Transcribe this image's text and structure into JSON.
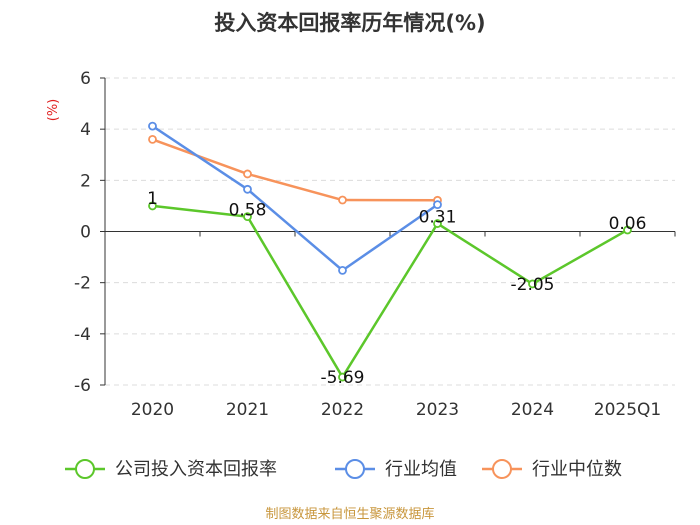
{
  "chart_data": {
    "type": "line",
    "title": "投入资本回报率历年情况(%)",
    "ylabel": "(%)",
    "xlabel": "",
    "categories": [
      "2020",
      "2021",
      "2022",
      "2023",
      "2024",
      "2025Q1"
    ],
    "ylim": [
      -6,
      6
    ],
    "yticks": [
      6,
      4,
      2,
      0,
      -2,
      -4,
      -6
    ],
    "grid": true,
    "legend_position": "bottom",
    "series": [
      {
        "name": "公司投入资本回报率",
        "color": "#5cc72b",
        "values": [
          1,
          0.58,
          -5.69,
          0.31,
          -2.05,
          0.06
        ],
        "labels": [
          "1",
          "0.58",
          "-5.69",
          "0.31",
          "-2.05",
          "0.06"
        ]
      },
      {
        "name": "行业均值",
        "color": "#5b8ee6",
        "values": [
          4.12,
          1.65,
          -1.52,
          1.05,
          null,
          null
        ]
      },
      {
        "name": "行业中位数",
        "color": "#f7935b",
        "values": [
          3.6,
          2.25,
          1.23,
          1.22,
          null,
          null
        ]
      }
    ]
  },
  "source_note": "制图数据来自恒生聚源数据库"
}
